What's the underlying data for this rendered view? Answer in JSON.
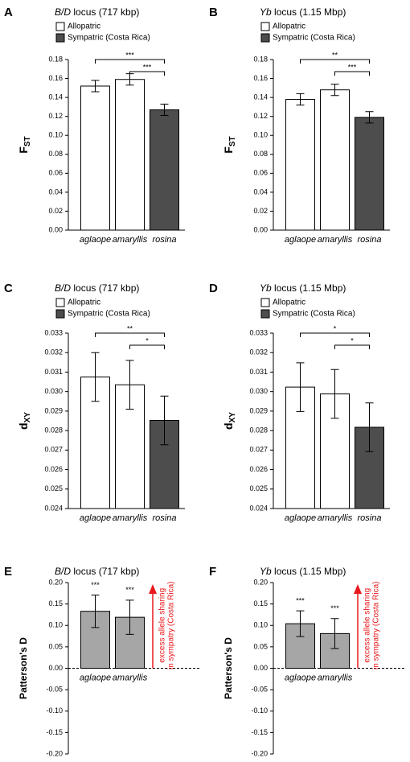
{
  "chart_data": [
    {
      "type": "bar",
      "panel": "A",
      "title_locus": "B/D",
      "title_rest": " locus (717 kbp)",
      "ylabel": "F",
      "ylabel_sub": "ST",
      "legend": [
        {
          "name": "Allopatric",
          "color": "#ffffff"
        },
        {
          "name": "Sympatric (Costa Rica)",
          "color": "#4d4d4d"
        }
      ],
      "categories": [
        "aglaope",
        "amaryllis",
        "rosina"
      ],
      "values": [
        0.152,
        0.159,
        0.127
      ],
      "errors": [
        0.006,
        0.006,
        0.006
      ],
      "colors": [
        "#ffffff",
        "#ffffff",
        "#4d4d4d"
      ],
      "ylim": [
        0,
        0.18
      ],
      "yticks": [
        {
          "value": 0,
          "label": "0.00"
        },
        0.02,
        0.04,
        0.06,
        0.08,
        {
          "value": 0.1,
          "label": "0.10"
        },
        0.12,
        0.14,
        0.16,
        0.18
      ],
      "brackets": [
        {
          "from": 0,
          "to": 2,
          "label": "***"
        },
        {
          "from": 1,
          "to": 2,
          "label": "***"
        }
      ]
    },
    {
      "type": "bar",
      "panel": "B",
      "title_locus": "Yb",
      "title_rest": " locus (1.15 Mbp)",
      "ylabel": "F",
      "ylabel_sub": "ST",
      "legend": [
        {
          "name": "Allopatric",
          "color": "#ffffff"
        },
        {
          "name": "Sympatric (Costa Rica)",
          "color": "#4d4d4d"
        }
      ],
      "categories": [
        "aglaope",
        "amaryllis",
        "rosina"
      ],
      "values": [
        0.138,
        0.148,
        0.119
      ],
      "errors": [
        0.006,
        0.006,
        0.006
      ],
      "colors": [
        "#ffffff",
        "#ffffff",
        "#4d4d4d"
      ],
      "ylim": [
        0,
        0.18
      ],
      "yticks": [
        {
          "value": 0,
          "label": "0.00"
        },
        0.02,
        0.04,
        0.06,
        0.08,
        {
          "value": 0.1,
          "label": "0.10"
        },
        0.12,
        0.14,
        0.16,
        0.18
      ],
      "brackets": [
        {
          "from": 0,
          "to": 2,
          "label": "**"
        },
        {
          "from": 1,
          "to": 2,
          "label": "***"
        }
      ]
    },
    {
      "type": "bar",
      "panel": "C",
      "title_locus": "B/D",
      "title_rest": " locus (717 kbp)",
      "ylabel": "d",
      "ylabel_sub": "XY",
      "legend": [
        {
          "name": "Allopatric",
          "color": "#ffffff"
        },
        {
          "name": "Sympatric (Costa Rica)",
          "color": "#4d4d4d"
        }
      ],
      "categories": [
        "aglaope",
        "amaryllis",
        "rosina"
      ],
      "values": [
        0.03075,
        0.03035,
        0.02852
      ],
      "errors": [
        0.00125,
        0.00125,
        0.00125
      ],
      "colors": [
        "#ffffff",
        "#ffffff",
        "#4d4d4d"
      ],
      "ylim": [
        0.024,
        0.033
      ],
      "yticks": [
        0.024,
        0.025,
        0.026,
        0.027,
        0.028,
        0.029,
        {
          "value": 0.03,
          "label": "0.030"
        },
        0.031,
        0.032,
        0.033
      ],
      "brackets": [
        {
          "from": 0,
          "to": 2,
          "label": "**"
        },
        {
          "from": 1,
          "to": 2,
          "label": "*"
        }
      ]
    },
    {
      "type": "bar",
      "panel": "D",
      "title_locus": "Yb",
      "title_rest": " locus (1.15 Mbp)",
      "ylabel": "d",
      "ylabel_sub": "XY",
      "legend": [
        {
          "name": "Allopatric",
          "color": "#ffffff"
        },
        {
          "name": "Sympatric (Costa Rica)",
          "color": "#4d4d4d"
        }
      ],
      "categories": [
        "aglaope",
        "amaryllis",
        "rosina"
      ],
      "values": [
        0.03023,
        0.02988,
        0.02817
      ],
      "errors": [
        0.00125,
        0.00125,
        0.00125
      ],
      "colors": [
        "#ffffff",
        "#ffffff",
        "#4d4d4d"
      ],
      "ylim": [
        0.024,
        0.033
      ],
      "yticks": [
        0.024,
        0.025,
        0.026,
        0.027,
        0.028,
        0.029,
        {
          "value": 0.03,
          "label": "0.030"
        },
        0.031,
        0.032,
        0.033
      ],
      "brackets": [
        {
          "from": 0,
          "to": 2,
          "label": "*"
        },
        {
          "from": 1,
          "to": 2,
          "label": "*"
        }
      ]
    },
    {
      "type": "bar",
      "panel": "E",
      "title_locus": "B/D",
      "title_rest": " locus (717 kbp)",
      "ylabel": "Patterson's D",
      "categories": [
        "aglaope",
        "amaryllis"
      ],
      "values": [
        0.133,
        0.119
      ],
      "errors": [
        0.038,
        0.04
      ],
      "colors": [
        "#a6a6a6",
        "#a6a6a6"
      ],
      "stars": [
        "***",
        "***"
      ],
      "ylim": [
        -0.2,
        0.2
      ],
      "yticks": [
        {
          "value": 0.2,
          "label": "0.20"
        },
        0.15,
        {
          "value": 0.1,
          "label": "0.10"
        },
        0.05,
        {
          "value": 0,
          "label": "0.00"
        },
        -0.05,
        {
          "value": -0.1,
          "label": "-0.10"
        },
        -0.15,
        {
          "value": -0.2,
          "label": "-0.20"
        }
      ],
      "arrow_text": [
        "excess allele sharing",
        "in sympatry (Costa Rica)"
      ],
      "arrow_color": "#e8191c"
    },
    {
      "type": "bar",
      "panel": "F",
      "title_locus": "Yb",
      "title_rest": " locus (1.15 Mbp)",
      "ylabel": "Patterson's D",
      "categories": [
        "aglaope",
        "amaryllis"
      ],
      "values": [
        0.104,
        0.081
      ],
      "errors": [
        0.03,
        0.035
      ],
      "colors": [
        "#a6a6a6",
        "#a6a6a6"
      ],
      "stars": [
        "***",
        "***"
      ],
      "ylim": [
        -0.2,
        0.2
      ],
      "yticks": [
        {
          "value": 0.2,
          "label": "0.20"
        },
        0.15,
        {
          "value": 0.1,
          "label": "0.10"
        },
        0.05,
        {
          "value": 0,
          "label": "0.00"
        },
        -0.05,
        {
          "value": -0.1,
          "label": "-0.10"
        },
        -0.15,
        {
          "value": -0.2,
          "label": "-0.20"
        }
      ],
      "arrow_text": [
        "excess allele sharing",
        "in sympatry (Costa Rica)"
      ],
      "arrow_color": "#e8191c"
    }
  ]
}
